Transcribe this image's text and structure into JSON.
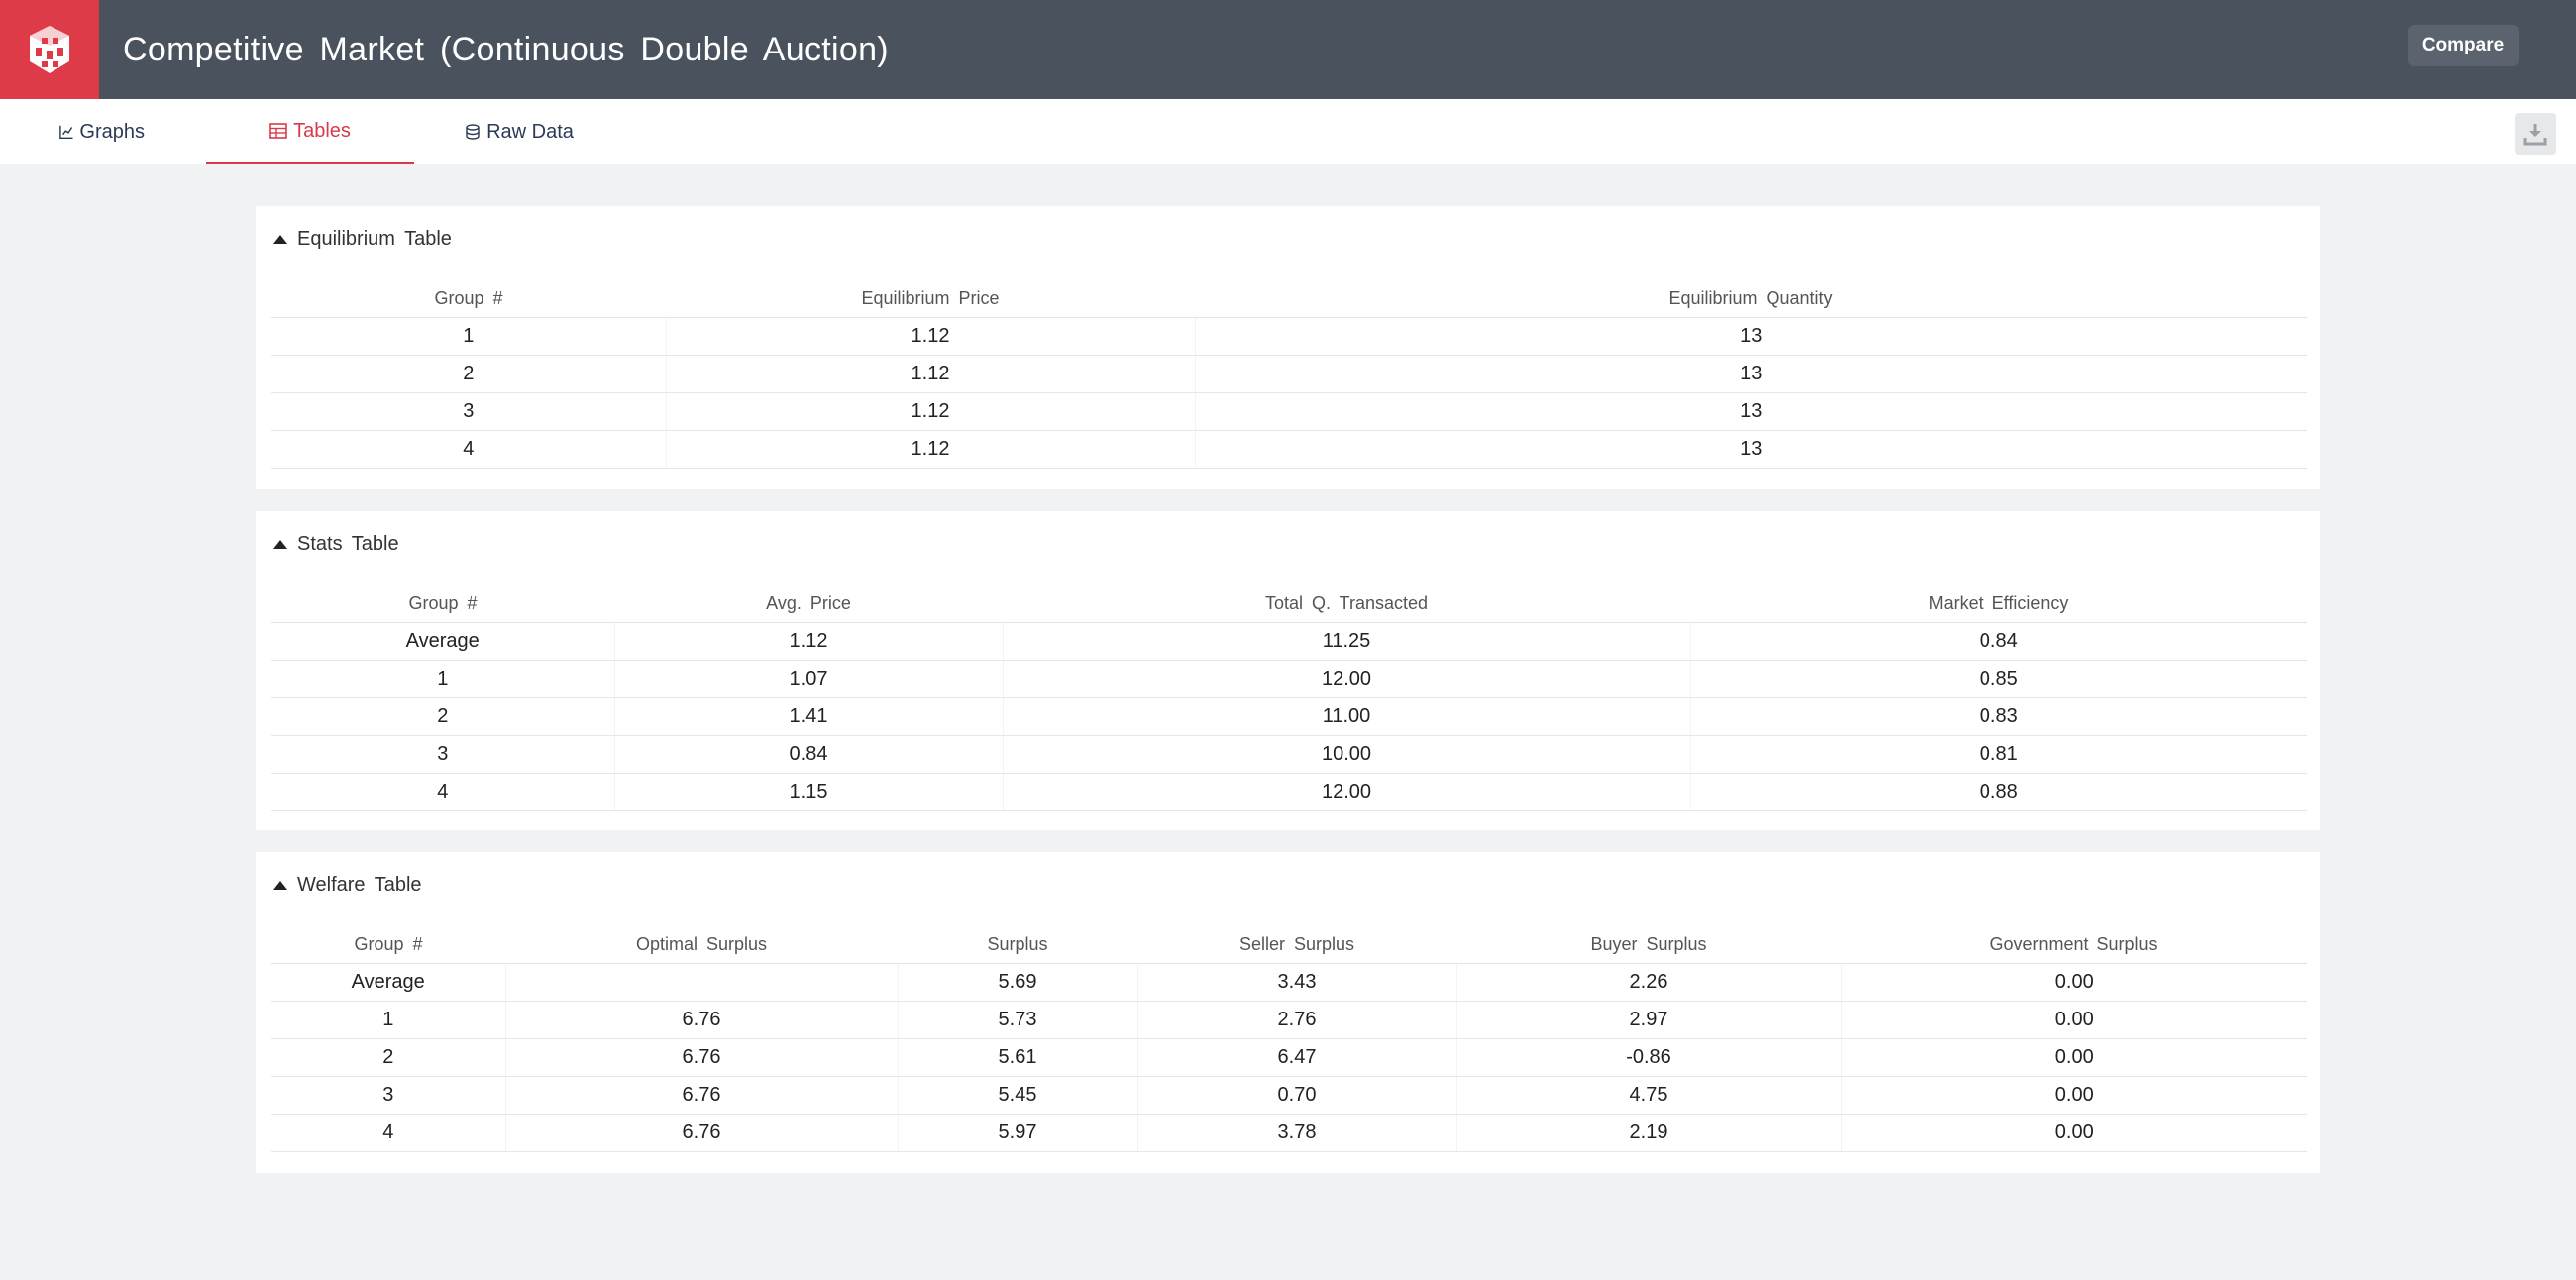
{
  "app": {
    "title": "Competitive Market (Continuous Double Auction)",
    "compare_label": "Compare",
    "accent": "#dc3b47",
    "header_bg": "#4a525d"
  },
  "tabs": [
    {
      "label": "Graphs",
      "icon": "chart-icon",
      "active": false
    },
    {
      "label": "Tables",
      "icon": "table-icon",
      "active": true
    },
    {
      "label": "Raw Data",
      "icon": "database-icon",
      "active": false
    }
  ],
  "equilibrium": {
    "title": "Equilibrium Table",
    "columns": [
      "Group #",
      "Equilibrium Price",
      "Equilibrium Quantity"
    ],
    "rows": [
      [
        "1",
        "1.12",
        "13"
      ],
      [
        "2",
        "1.12",
        "13"
      ],
      [
        "3",
        "1.12",
        "13"
      ],
      [
        "4",
        "1.12",
        "13"
      ]
    ]
  },
  "stats": {
    "title": "Stats Table",
    "columns": [
      "Group #",
      "Avg. Price",
      "Total Q. Transacted",
      "Market Efficiency"
    ],
    "rows": [
      [
        "Average",
        "1.12",
        "11.25",
        "0.84"
      ],
      [
        "1",
        "1.07",
        "12.00",
        "0.85"
      ],
      [
        "2",
        "1.41",
        "11.00",
        "0.83"
      ],
      [
        "3",
        "0.84",
        "10.00",
        "0.81"
      ],
      [
        "4",
        "1.15",
        "12.00",
        "0.88"
      ]
    ]
  },
  "welfare": {
    "title": "Welfare Table",
    "columns": [
      "Group #",
      "Optimal Surplus",
      "Surplus",
      "Seller Surplus",
      "Buyer Surplus",
      "Government Surplus"
    ],
    "rows": [
      [
        "Average",
        "",
        "5.69",
        "3.43",
        "2.26",
        "0.00"
      ],
      [
        "1",
        "6.76",
        "5.73",
        "2.76",
        "2.97",
        "0.00"
      ],
      [
        "2",
        "6.76",
        "5.61",
        "6.47",
        "-0.86",
        "0.00"
      ],
      [
        "3",
        "6.76",
        "5.45",
        "0.70",
        "4.75",
        "0.00"
      ],
      [
        "4",
        "6.76",
        "5.97",
        "3.78",
        "2.19",
        "0.00"
      ]
    ]
  }
}
